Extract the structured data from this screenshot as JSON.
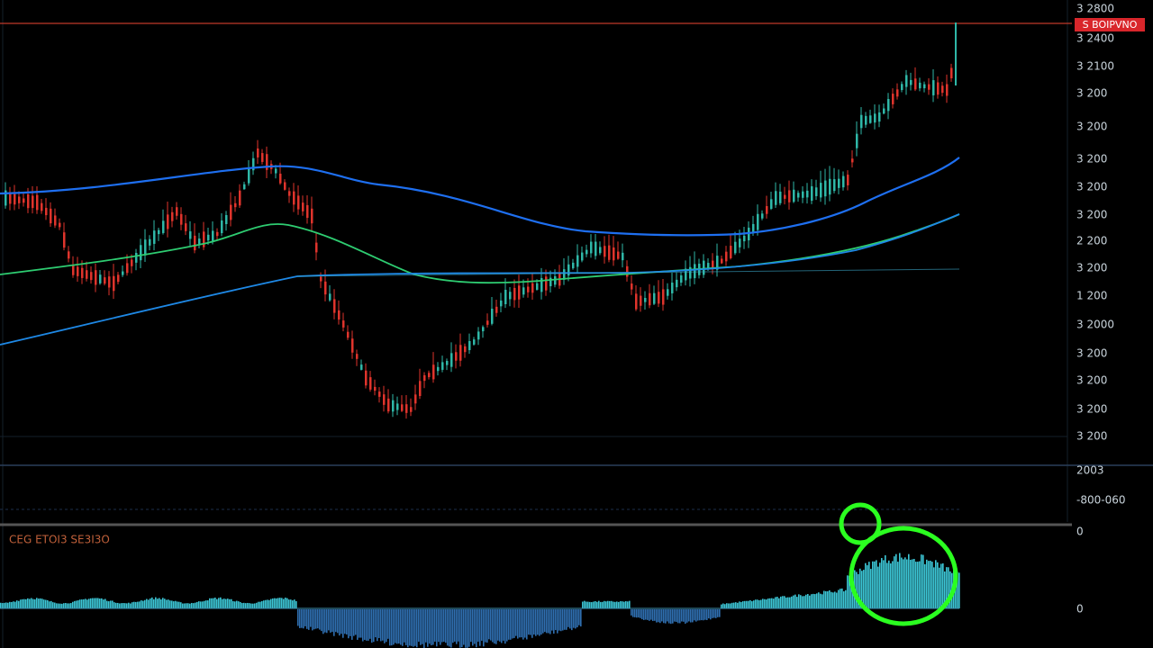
{
  "price_axis": {
    "labels": [
      "3 2800",
      "3 2400",
      "3 2100",
      "3 200",
      "3 200",
      "3 200",
      "3 200",
      "3 200",
      "2 200",
      "3 200",
      "1 200",
      "3 2000",
      "3 200",
      "3 200",
      "3 200",
      "3 200"
    ]
  },
  "price_tag": "S BOIPVNO",
  "indicator_label": "CEG  ETOI3  SE3I3O",
  "indicator_axis": {
    "labels": [
      "2003",
      "-800-060",
      "0",
      "0"
    ]
  }
}
